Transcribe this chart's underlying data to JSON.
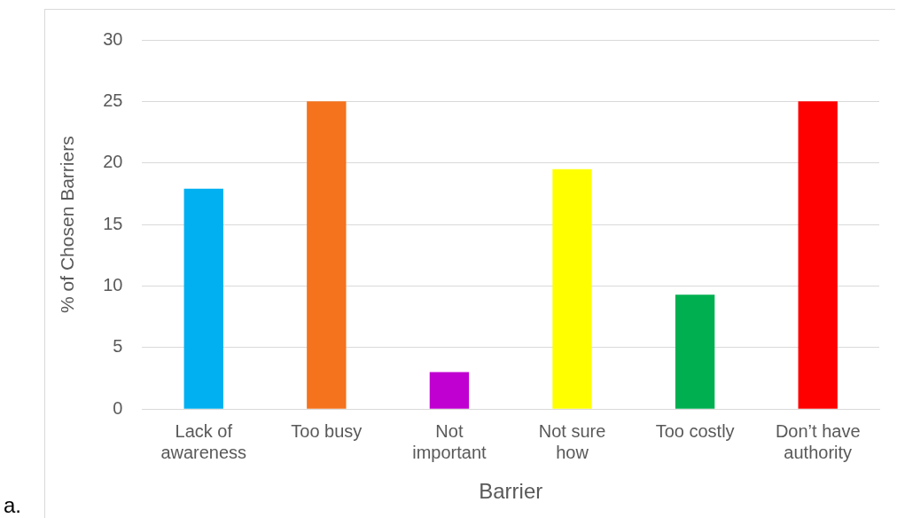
{
  "chart_data": {
    "type": "bar",
    "xlabel": "Barrier",
    "ylabel": "% of Chosen Barriers",
    "categories": [
      "Lack of awareness",
      "Too busy",
      "Not important",
      "Not sure how",
      "Too costly",
      "Don’t have authority"
    ],
    "values": [
      17.9,
      25,
      3,
      19.5,
      9.3,
      25
    ],
    "colors": [
      "#00b0f0",
      "#f4731c",
      "#c000d0",
      "#ffff00",
      "#00b050",
      "#ff0000"
    ],
    "ylim": [
      0,
      30
    ],
    "yticks": [
      0,
      5,
      10,
      15,
      20,
      25,
      30
    ],
    "grid": "y",
    "legend": false,
    "annotations": [
      "a."
    ]
  }
}
